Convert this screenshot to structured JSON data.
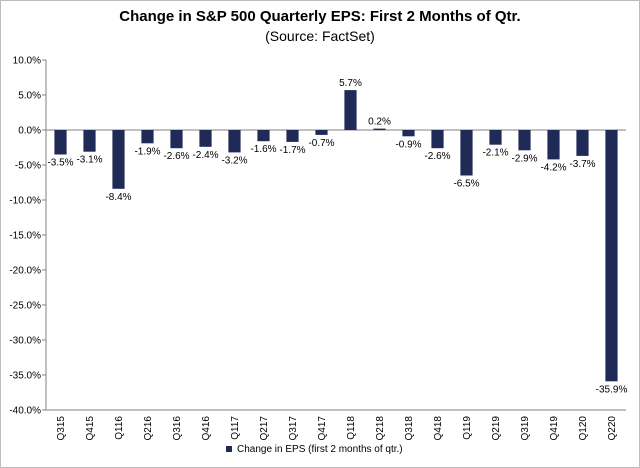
{
  "chart_data": {
    "type": "bar",
    "title": "Change in S&P 500 Quarterly EPS: First 2 Months of Qtr.",
    "subtitle": "(Source: FactSet)",
    "categories": [
      "Q315",
      "Q415",
      "Q116",
      "Q216",
      "Q316",
      "Q416",
      "Q117",
      "Q217",
      "Q317",
      "Q417",
      "Q118",
      "Q218",
      "Q318",
      "Q418",
      "Q119",
      "Q219",
      "Q319",
      "Q419",
      "Q120",
      "Q220"
    ],
    "series": [
      {
        "name": "Change in EPS (first 2 months of qtr.)",
        "values": [
          -3.5,
          -3.1,
          -8.4,
          -1.9,
          -2.6,
          -2.4,
          -3.2,
          -1.6,
          -1.7,
          -0.7,
          5.7,
          0.2,
          -0.9,
          -2.6,
          -6.5,
          -2.1,
          -2.9,
          -4.2,
          -3.7,
          -35.9
        ],
        "labels": [
          "-3.5%",
          "-3.1%",
          "-8.4%",
          "-1.9%",
          "-2.6%",
          "-2.4%",
          "-3.2%",
          "-1.6%",
          "-1.7%",
          "-0.7%",
          "5.7%",
          "0.2%",
          "-0.9%",
          "-2.6%",
          "-6.5%",
          "-2.1%",
          "-2.9%",
          "-4.2%",
          "-3.7%",
          "-35.9%"
        ],
        "color": "#1f2a56"
      }
    ],
    "ylim": [
      -40,
      10
    ],
    "yticks": [
      10,
      5,
      0,
      -5,
      -10,
      -15,
      -20,
      -25,
      -30,
      -35,
      -40
    ],
    "ytick_labels": [
      "10.0%",
      "5.0%",
      "0.0%",
      "-5.0%",
      "-10.0%",
      "-15.0%",
      "-20.0%",
      "-25.0%",
      "-30.0%",
      "-35.0%",
      "-40.0%"
    ],
    "grid": false,
    "legend_position": "bottom"
  }
}
